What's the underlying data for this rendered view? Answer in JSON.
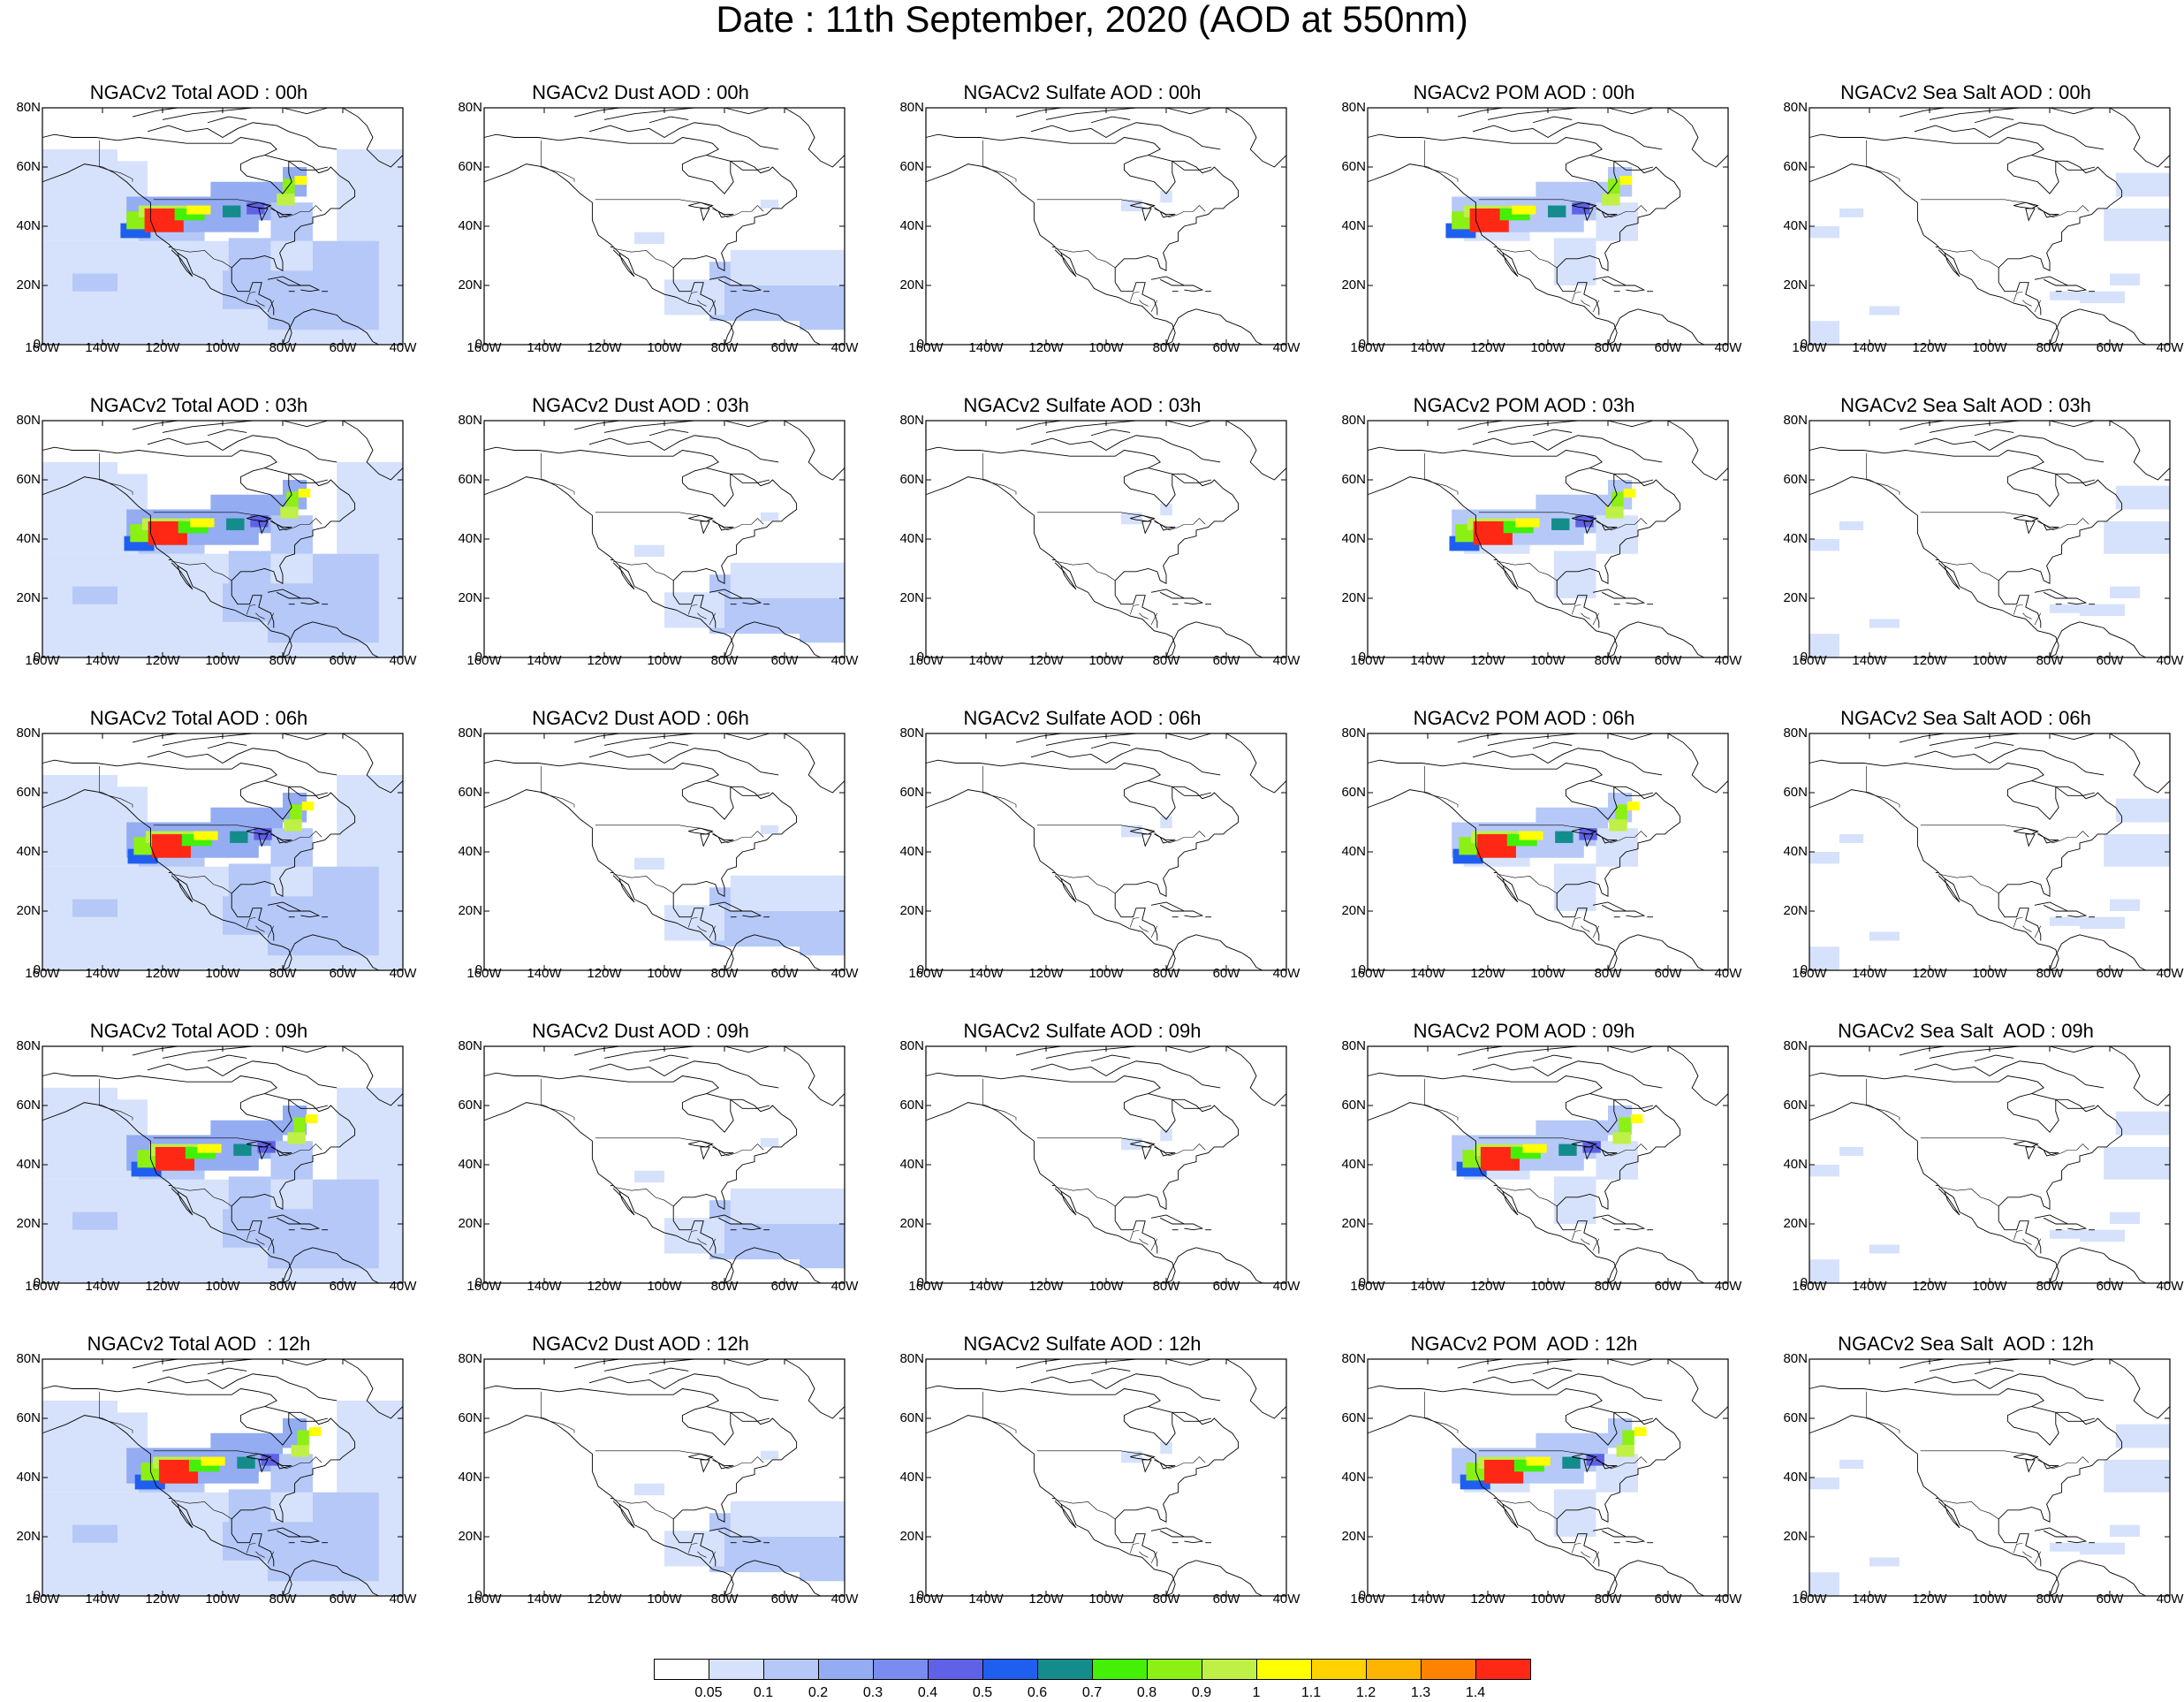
{
  "title": "Date : 11th September, 2020 (AOD at 550nm)",
  "axes": {
    "y_ticks": [
      "80N",
      "60N",
      "40N",
      "20N",
      "0"
    ],
    "x_ticks": [
      "160W",
      "140W",
      "120W",
      "100W",
      "80W",
      "60W",
      "40W"
    ]
  },
  "rows": [
    {
      "hour": "00h",
      "titles": [
        "NGACv2 Total AOD : 00h",
        "NGACv2 Dust AOD : 00h",
        "NGACv2 Sulfate AOD : 00h",
        "NGACv2 POM AOD : 00h",
        "NGACv2 Sea Salt AOD : 00h"
      ]
    },
    {
      "hour": "03h",
      "titles": [
        "NGACv2 Total AOD : 03h",
        "NGACv2 Dust AOD : 03h",
        "NGACv2 Sulfate AOD : 03h",
        "NGACv2 POM AOD : 03h",
        "NGACv2 Sea Salt AOD : 03h"
      ]
    },
    {
      "hour": "06h",
      "titles": [
        "NGACv2 Total AOD : 06h",
        "NGACv2 Dust AOD : 06h",
        "NGACv2 Sulfate AOD : 06h",
        "NGACv2 POM AOD : 06h",
        "NGACv2 Sea Salt AOD : 06h"
      ]
    },
    {
      "hour": "09h",
      "titles": [
        "NGACv2 Total AOD : 09h",
        "NGACv2 Dust AOD : 09h",
        "NGACv2 Sulfate AOD : 09h",
        "NGACv2 POM AOD : 09h",
        "NGACv2 Sea Salt  AOD : 09h"
      ]
    },
    {
      "hour": "12h",
      "titles": [
        "NGACv2 Total AOD  : 12h",
        "NGACv2 Dust AOD : 12h",
        "NGACv2 Sulfate AOD : 12h",
        "NGACv2 POM  AOD : 12h",
        "NGACv2 Sea Salt  AOD : 12h"
      ]
    }
  ],
  "colorbar": {
    "colors": [
      "#ffffff",
      "#d6e2fb",
      "#b5c8f7",
      "#93acf2",
      "#7a8cf0",
      "#5f62e6",
      "#1f5ff0",
      "#148c8c",
      "#43f006",
      "#8cf014",
      "#bef046",
      "#ffff00",
      "#ffd200",
      "#ffb400",
      "#ff8200",
      "#ff2814"
    ],
    "labels": [
      "0.05",
      "0.1",
      "0.2",
      "0.3",
      "0.4",
      "0.5",
      "0.6",
      "0.7",
      "0.8",
      "0.9",
      "1",
      "1.1",
      "1.2",
      "1.3",
      "1.4"
    ]
  }
}
